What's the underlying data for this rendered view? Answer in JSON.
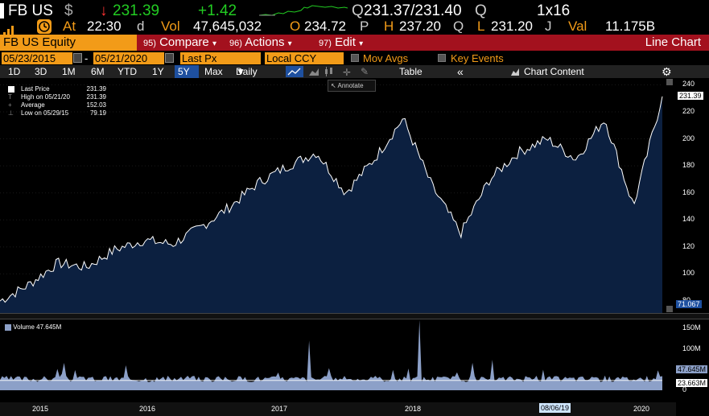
{
  "quote": {
    "ticker": "FB US",
    "currency_icon": "$",
    "last_price": "231.39",
    "change": "+1.42",
    "bid_ask_label": "Q",
    "bid_ask": "231.37/231.40",
    "bid_ask_suffix": "Q",
    "size": "1x16",
    "at_label": "At",
    "time": "22:30",
    "time_suffix": "d",
    "vol_label": "Vol",
    "volume": "47,645,032",
    "open_label": "O",
    "open": "234.72",
    "open_suffix": "P",
    "high_label": "H",
    "high": "237.20",
    "high_suffix": "Q",
    "low_label": "L",
    "low": "231.20",
    "low_suffix": "J",
    "val_label": "Val",
    "value": "11.175B",
    "up_color": "#22cc22",
    "down_color": "#ff3333"
  },
  "menubar": {
    "security": "FB US Equity",
    "compare_num": "95)",
    "compare": "Compare",
    "actions_num": "96)",
    "actions": "Actions",
    "edit_num": "97)",
    "edit": "Edit",
    "title": "Line Chart"
  },
  "settings": {
    "start_date": "05/23/2015",
    "end_date": "05/21/2020",
    "field": "Last Px",
    "currency": "Local CCY",
    "mov_avgs": "Mov Avgs",
    "key_events": "Key Events"
  },
  "toolbar": {
    "ranges": [
      "1D",
      "3D",
      "1M",
      "6M",
      "YTD",
      "1Y",
      "5Y",
      "Max"
    ],
    "selected_range": "5Y",
    "frequency": "Daily",
    "table": "Table",
    "collapse": "«",
    "chart_content": "Chart Content",
    "annotate": "Annotate"
  },
  "legend": {
    "last_price_label": "Last Price",
    "last_price": "231.39",
    "high_label": "High on 05/21/20",
    "high": "231.39",
    "average_label": "Average",
    "average": "152.03",
    "low_label": "Low on 05/29/15",
    "low": "79.19",
    "volume_label": "Volume",
    "volume": "47.645M"
  },
  "price_axis": {
    "ticks": [
      "240",
      "220",
      "200",
      "180",
      "160",
      "140",
      "120",
      "100",
      "80"
    ],
    "last_marker": "231.39",
    "bottom_marker": "71.067"
  },
  "volume_axis": {
    "ticks": [
      "150M",
      "100M",
      "50M",
      "0"
    ],
    "last_marker": "47.645M",
    "avg_marker": "23.663M"
  },
  "x_axis": {
    "years": [
      "2015",
      "2016",
      "2017",
      "2018",
      "2019",
      "2020"
    ],
    "cursor_date": "08/06/19"
  },
  "chart_data": {
    "type": "area",
    "series": [
      {
        "name": "Last Price",
        "x": [
          "2015-05",
          "2015-08",
          "2015-11",
          "2016-02",
          "2016-05",
          "2016-08",
          "2016-11",
          "2017-02",
          "2017-05",
          "2017-08",
          "2017-11",
          "2018-01",
          "2018-03",
          "2018-05",
          "2018-07",
          "2018-09",
          "2018-12",
          "2019-03",
          "2019-06",
          "2019-07",
          "2019-10",
          "2020-01",
          "2020-03",
          "2020-05"
        ],
        "values": [
          80,
          92,
          108,
          105,
          118,
          125,
          122,
          135,
          150,
          168,
          180,
          190,
          160,
          185,
          215,
          165,
          130,
          170,
          190,
          200,
          185,
          215,
          150,
          231.39
        ]
      }
    ],
    "volume_series": {
      "name": "Volume",
      "last": 47.645,
      "average": 23.663
    },
    "ylim": [
      71.067,
      245
    ],
    "volume_ylim": [
      0,
      175
    ]
  }
}
